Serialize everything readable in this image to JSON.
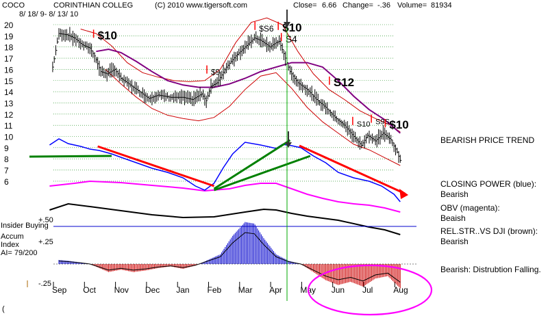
{
  "header": {
    "ticker": "COCO",
    "company": "CORINTHIAN COLLEG",
    "date_range": "8/ 18/ 9-  8/ 13/ 10",
    "copyright": "(C) 2010 www.tigersoft.com",
    "close_label": "Close=",
    "close_value": "6.66",
    "change_label": "Change=",
    "change_value": "-.36",
    "volume_label": "Volume=",
    "volume_value": "81934"
  },
  "side_notes": {
    "price_trend": "BEARISH PRICE TREND",
    "closing_power_title": "CLOSING POWER (blue):",
    "closing_power_value": "Bearish",
    "obv_title": "OBV (magenta):",
    "obv_value": "Beaish",
    "relstr_title": "REL.STR..VS DJI (brown):",
    "relstr_value": "Bearish",
    "distribution": "Bearish:  Distrubtion Falling."
  },
  "panel_labels": {
    "insider_buying": "Insider Buying",
    "accum_line1": "Accum",
    "accum_line2": "Index",
    "accum_ai": "AI= 79/200",
    "ai_plus50": "+.50",
    "ai_plus25": "+.25",
    "ai_minus25": "-.25",
    "footer_mark": "("
  },
  "colors": {
    "price_bars": "#000000",
    "bands": "#cc0000",
    "moving_avg": "#800080",
    "closing_power": "#0000ff",
    "obv": "#ff00ff",
    "rel_strength": "#000000",
    "trend_red": "#ff0000",
    "trend_green": "#008000",
    "accum_positive": "#0000cc",
    "accum_negative": "#cc0000",
    "grid": "#008000",
    "insider_line": "#0000cc",
    "marker_line": "#00aa00",
    "highlight_ellipse": "#ff00ff"
  },
  "chart_data": {
    "type": "line",
    "x_labels": [
      "Sep",
      "Oct",
      "Nov",
      "Dec",
      "Jan",
      "Feb",
      "Mar",
      "Apr",
      "May",
      "Jun",
      "Jul",
      "Aug"
    ],
    "y_ticks": [
      20,
      19,
      18,
      17,
      16,
      15,
      14,
      13,
      12,
      11,
      10,
      9,
      8,
      7,
      6
    ],
    "ylim": [
      6,
      20
    ],
    "price": [
      {
        "m": -0.2,
        "p": 16.2
      },
      {
        "m": 0.0,
        "p": 19.2
      },
      {
        "m": 0.25,
        "p": 19.1
      },
      {
        "m": 0.5,
        "p": 18.8
      },
      {
        "m": 0.75,
        "p": 18.2
      },
      {
        "m": 1.0,
        "p": 17.9
      },
      {
        "m": 1.15,
        "p": 17.2
      },
      {
        "m": 1.35,
        "p": 15.8
      },
      {
        "m": 1.55,
        "p": 15.6
      },
      {
        "m": 1.8,
        "p": 16.0
      },
      {
        "m": 2.0,
        "p": 15.2
      },
      {
        "m": 2.3,
        "p": 14.6
      },
      {
        "m": 2.6,
        "p": 14.0
      },
      {
        "m": 2.9,
        "p": 13.4
      },
      {
        "m": 3.2,
        "p": 13.7
      },
      {
        "m": 3.6,
        "p": 13.5
      },
      {
        "m": 4.0,
        "p": 13.5
      },
      {
        "m": 4.3,
        "p": 13.3
      },
      {
        "m": 4.6,
        "p": 13.8
      },
      {
        "m": 4.75,
        "p": 13.2
      },
      {
        "m": 4.9,
        "p": 14.5
      },
      {
        "m": 5.1,
        "p": 14.8
      },
      {
        "m": 5.4,
        "p": 16.2
      },
      {
        "m": 5.7,
        "p": 17.2
      },
      {
        "m": 6.0,
        "p": 18.0
      },
      {
        "m": 6.3,
        "p": 18.8
      },
      {
        "m": 6.5,
        "p": 18.6
      },
      {
        "m": 6.8,
        "p": 18.0
      },
      {
        "m": 7.0,
        "p": 18.4
      },
      {
        "m": 7.1,
        "p": 18.5
      },
      {
        "m": 7.25,
        "p": 17.4
      },
      {
        "m": 7.45,
        "p": 15.8
      },
      {
        "m": 7.7,
        "p": 14.8
      },
      {
        "m": 8.0,
        "p": 14.2
      },
      {
        "m": 8.3,
        "p": 13.3
      },
      {
        "m": 8.6,
        "p": 12.6
      },
      {
        "m": 8.9,
        "p": 11.7
      },
      {
        "m": 9.2,
        "p": 11.0
      },
      {
        "m": 9.5,
        "p": 10.0
      },
      {
        "m": 9.75,
        "p": 9.2
      },
      {
        "m": 9.95,
        "p": 10.1
      },
      {
        "m": 10.2,
        "p": 9.6
      },
      {
        "m": 10.45,
        "p": 10.3
      },
      {
        "m": 10.7,
        "p": 9.7
      },
      {
        "m": 10.9,
        "p": 8.6
      },
      {
        "m": 11.05,
        "p": 7.5
      }
    ],
    "moving_average": [
      {
        "m": 1.2,
        "p": 17.6
      },
      {
        "m": 1.6,
        "p": 17.8
      },
      {
        "m": 2.0,
        "p": 17.5
      },
      {
        "m": 2.5,
        "p": 16.7
      },
      {
        "m": 3.0,
        "p": 15.8
      },
      {
        "m": 3.5,
        "p": 15.0
      },
      {
        "m": 4.0,
        "p": 14.6
      },
      {
        "m": 4.5,
        "p": 14.4
      },
      {
        "m": 5.0,
        "p": 14.4
      },
      {
        "m": 5.5,
        "p": 14.7
      },
      {
        "m": 6.0,
        "p": 15.2
      },
      {
        "m": 6.5,
        "p": 15.8
      },
      {
        "m": 7.0,
        "p": 16.2
      },
      {
        "m": 7.5,
        "p": 16.6
      },
      {
        "m": 8.0,
        "p": 16.6
      },
      {
        "m": 8.5,
        "p": 16.2
      },
      {
        "m": 9.0,
        "p": 15.0
      },
      {
        "m": 9.5,
        "p": 13.6
      },
      {
        "m": 10.0,
        "p": 12.4
      },
      {
        "m": 10.5,
        "p": 11.5
      },
      {
        "m": 11.0,
        "p": 10.3
      }
    ],
    "upper_band": [
      {
        "m": 0.7,
        "p": 19.6
      },
      {
        "m": 1.2,
        "p": 19.2
      },
      {
        "m": 1.7,
        "p": 18.1
      },
      {
        "m": 2.2,
        "p": 16.6
      },
      {
        "m": 2.7,
        "p": 15.7
      },
      {
        "m": 3.2,
        "p": 15.3
      },
      {
        "m": 3.7,
        "p": 15.0
      },
      {
        "m": 4.2,
        "p": 14.9
      },
      {
        "m": 4.7,
        "p": 15.0
      },
      {
        "m": 5.2,
        "p": 16.0
      },
      {
        "m": 5.7,
        "p": 18.4
      },
      {
        "m": 6.2,
        "p": 20.2
      },
      {
        "m": 6.7,
        "p": 20.6
      },
      {
        "m": 7.2,
        "p": 20.0
      },
      {
        "m": 7.7,
        "p": 17.6
      },
      {
        "m": 8.2,
        "p": 15.6
      },
      {
        "m": 8.7,
        "p": 14.2
      },
      {
        "m": 9.2,
        "p": 13.3
      },
      {
        "m": 9.7,
        "p": 12.3
      },
      {
        "m": 10.2,
        "p": 11.6
      },
      {
        "m": 10.7,
        "p": 11.0
      },
      {
        "m": 11.0,
        "p": 10.4
      }
    ],
    "lower_band": [
      {
        "m": 1.5,
        "p": 16.0
      },
      {
        "m": 2.0,
        "p": 14.7
      },
      {
        "m": 2.5,
        "p": 13.5
      },
      {
        "m": 3.0,
        "p": 12.5
      },
      {
        "m": 3.5,
        "p": 11.9
      },
      {
        "m": 4.0,
        "p": 11.6
      },
      {
        "m": 4.5,
        "p": 11.4
      },
      {
        "m": 5.0,
        "p": 11.7
      },
      {
        "m": 5.5,
        "p": 12.7
      },
      {
        "m": 6.0,
        "p": 14.2
      },
      {
        "m": 6.5,
        "p": 15.4
      },
      {
        "m": 7.0,
        "p": 15.7
      },
      {
        "m": 7.5,
        "p": 14.3
      },
      {
        "m": 8.0,
        "p": 12.6
      },
      {
        "m": 8.5,
        "p": 11.3
      },
      {
        "m": 9.0,
        "p": 10.3
      },
      {
        "m": 9.5,
        "p": 9.3
      },
      {
        "m": 10.0,
        "p": 8.8
      },
      {
        "m": 10.5,
        "p": 8.1
      },
      {
        "m": 11.0,
        "p": 7.4
      }
    ],
    "signals": [
      {
        "label": "$10",
        "m": 1.25,
        "p": 18.7,
        "size": 17,
        "bold": true
      },
      {
        "label": "$9",
        "m": 4.9,
        "p": 15.5,
        "size": 12,
        "bold": false
      },
      {
        "label": "$S6",
        "m": 6.45,
        "p": 19.4,
        "size": 12,
        "bold": false
      },
      {
        "label": "$10",
        "m": 7.2,
        "p": 19.4,
        "size": 17,
        "bold": true
      },
      {
        "label": "S4",
        "m": 7.3,
        "p": 18.4,
        "size": 14,
        "bold": false
      },
      {
        "label": "S12",
        "m": 8.85,
        "p": 14.5,
        "size": 17,
        "bold": true
      },
      {
        "label": "S10",
        "m": 9.6,
        "p": 10.9,
        "size": 11,
        "bold": false
      },
      {
        "label": "S9S",
        "m": 10.2,
        "p": 11.1,
        "size": 11,
        "bold": false
      },
      {
        "label": "$10",
        "m": 10.65,
        "p": 10.7,
        "size": 17,
        "bold": true
      }
    ],
    "indicator_series": {
      "closing_power": [
        {
          "m": -0.3,
          "v": 212
        },
        {
          "m": 0.0,
          "v": 203
        },
        {
          "m": 0.3,
          "v": 210
        },
        {
          "m": 0.7,
          "v": 214
        },
        {
          "m": 1.0,
          "v": 218
        },
        {
          "m": 1.3,
          "v": 220
        },
        {
          "m": 1.7,
          "v": 225
        },
        {
          "m": 2.0,
          "v": 230
        },
        {
          "m": 2.5,
          "v": 238
        },
        {
          "m": 3.0,
          "v": 246
        },
        {
          "m": 3.5,
          "v": 252
        },
        {
          "m": 4.0,
          "v": 260
        },
        {
          "m": 4.4,
          "v": 272
        },
        {
          "m": 4.7,
          "v": 278
        },
        {
          "m": 5.0,
          "v": 268
        },
        {
          "m": 5.3,
          "v": 245
        },
        {
          "m": 5.6,
          "v": 225
        },
        {
          "m": 6.0,
          "v": 208
        },
        {
          "m": 6.5,
          "v": 212
        },
        {
          "m": 6.8,
          "v": 215
        },
        {
          "m": 7.0,
          "v": 217
        },
        {
          "m": 7.2,
          "v": 211
        },
        {
          "m": 7.5,
          "v": 213
        },
        {
          "m": 7.8,
          "v": 216
        },
        {
          "m": 8.2,
          "v": 228
        },
        {
          "m": 8.6,
          "v": 238
        },
        {
          "m": 9.0,
          "v": 252
        },
        {
          "m": 9.5,
          "v": 260
        },
        {
          "m": 10.0,
          "v": 265
        },
        {
          "m": 10.4,
          "v": 272
        },
        {
          "m": 10.8,
          "v": 284
        },
        {
          "m": 11.0,
          "v": 295
        }
      ],
      "obv": [
        {
          "m": -0.3,
          "v": 272
        },
        {
          "m": 0.5,
          "v": 268
        },
        {
          "m": 1.0,
          "v": 265
        },
        {
          "m": 2.0,
          "v": 267
        },
        {
          "m": 3.0,
          "v": 271
        },
        {
          "m": 4.0,
          "v": 275
        },
        {
          "m": 4.7,
          "v": 279
        },
        {
          "m": 5.5,
          "v": 276
        },
        {
          "m": 6.0,
          "v": 271
        },
        {
          "m": 6.5,
          "v": 268
        },
        {
          "m": 7.0,
          "v": 268
        },
        {
          "m": 7.5,
          "v": 276
        },
        {
          "m": 8.0,
          "v": 284
        },
        {
          "m": 8.5,
          "v": 290
        },
        {
          "m": 9.0,
          "v": 295
        },
        {
          "m": 9.5,
          "v": 298
        },
        {
          "m": 10.0,
          "v": 300
        },
        {
          "m": 10.5,
          "v": 304
        },
        {
          "m": 11.0,
          "v": 310
        }
      ],
      "rel_strength": [
        {
          "m": -0.3,
          "v": 307
        },
        {
          "m": 0.3,
          "v": 298
        },
        {
          "m": 1.0,
          "v": 302
        },
        {
          "m": 2.0,
          "v": 308
        },
        {
          "m": 3.0,
          "v": 314
        },
        {
          "m": 4.0,
          "v": 318
        },
        {
          "m": 5.0,
          "v": 317
        },
        {
          "m": 6.0,
          "v": 310
        },
        {
          "m": 6.6,
          "v": 306
        },
        {
          "m": 7.0,
          "v": 307
        },
        {
          "m": 7.5,
          "v": 312
        },
        {
          "m": 8.0,
          "v": 316
        },
        {
          "m": 9.0,
          "v": 322
        },
        {
          "m": 10.0,
          "v": 332
        },
        {
          "m": 10.5,
          "v": 336
        },
        {
          "m": 11.0,
          "v": 343
        }
      ]
    },
    "accumulation_index": [
      {
        "m": 0.0,
        "v": 0.05
      },
      {
        "m": 0.3,
        "v": 0.04
      },
      {
        "m": 0.7,
        "v": 0.02
      },
      {
        "m": 1.0,
        "v": 0.0
      },
      {
        "m": 1.3,
        "v": -0.05
      },
      {
        "m": 1.6,
        "v": -0.1
      },
      {
        "m": 2.0,
        "v": -0.07
      },
      {
        "m": 2.4,
        "v": -0.1
      },
      {
        "m": 2.8,
        "v": -0.08
      },
      {
        "m": 3.2,
        "v": -0.05
      },
      {
        "m": 3.6,
        "v": -0.03
      },
      {
        "m": 4.0,
        "v": -0.06
      },
      {
        "m": 4.4,
        "v": -0.02
      },
      {
        "m": 4.8,
        "v": 0.05
      },
      {
        "m": 5.2,
        "v": 0.12
      },
      {
        "m": 5.6,
        "v": 0.35
      },
      {
        "m": 6.0,
        "v": 0.52
      },
      {
        "m": 6.3,
        "v": 0.5
      },
      {
        "m": 6.6,
        "v": 0.32
      },
      {
        "m": 7.0,
        "v": 0.12
      },
      {
        "m": 7.4,
        "v": 0.04
      },
      {
        "m": 7.8,
        "v": 0.0
      },
      {
        "m": 8.2,
        "v": -0.1
      },
      {
        "m": 8.6,
        "v": -0.2
      },
      {
        "m": 9.0,
        "v": -0.26
      },
      {
        "m": 9.4,
        "v": -0.22
      },
      {
        "m": 9.8,
        "v": -0.28
      },
      {
        "m": 10.2,
        "v": -0.18
      },
      {
        "m": 10.6,
        "v": -0.15
      },
      {
        "m": 11.0,
        "v": -0.3
      }
    ]
  }
}
